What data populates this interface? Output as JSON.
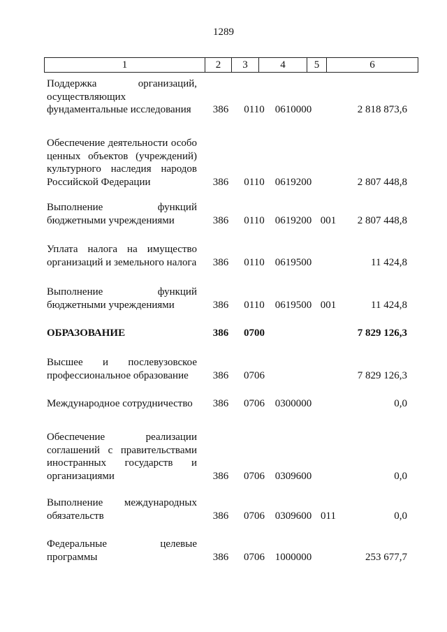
{
  "page_number": "1289",
  "header": [
    "1",
    "2",
    "3",
    "4",
    "5",
    "6"
  ],
  "rows": [
    {
      "name": "Поддержка организаций, осуществляющих фундаментальные исследования",
      "c2": "386",
      "c3": "0110",
      "c4": "0610000",
      "c5": "",
      "c6": "2 818 873,6",
      "bold": false
    },
    {
      "name": "Обеспечение деятельности особо ценных объектов (учреждений) культурного наследия народов Российской Федерации",
      "c2": "386",
      "c3": "0110",
      "c4": "0619200",
      "c5": "",
      "c6": "2 807 448,8",
      "bold": false
    },
    {
      "name": "Выполнение функций бюджетными учреждениями",
      "c2": "386",
      "c3": "0110",
      "c4": "0619200",
      "c5": "001",
      "c6": "2 807 448,8",
      "bold": false
    },
    {
      "name": "Уплата налога на имущество организаций и земельного налога",
      "c2": "386",
      "c3": "0110",
      "c4": "0619500",
      "c5": "",
      "c6": "11 424,8",
      "bold": false
    },
    {
      "name": "Выполнение функций бюджетными учреждениями",
      "c2": "386",
      "c3": "0110",
      "c4": "0619500",
      "c5": "001",
      "c6": "11 424,8",
      "bold": false
    },
    {
      "name": "ОБРАЗОВАНИЕ",
      "c2": "386",
      "c3": "0700",
      "c4": "",
      "c5": "",
      "c6": "7 829 126,3",
      "bold": true
    },
    {
      "name": "Высшее и послевузовское профессиональное образование",
      "c2": "386",
      "c3": "0706",
      "c4": "",
      "c5": "",
      "c6": "7 829 126,3",
      "bold": false
    },
    {
      "name": "Международное сотрудничество",
      "c2": "386",
      "c3": "0706",
      "c4": "0300000",
      "c5": "",
      "c6": "0,0",
      "bold": false
    },
    {
      "name": "Обеспечение реализации соглашений с правительствами иностранных государств и организациями",
      "c2": "386",
      "c3": "0706",
      "c4": "0309600",
      "c5": "",
      "c6": "0,0",
      "bold": false
    },
    {
      "name": "Выполнение международных обязательств",
      "c2": "386",
      "c3": "0706",
      "c4": "0309600",
      "c5": "011",
      "c6": "0,0",
      "bold": false
    },
    {
      "name": "Федеральные целевые программы",
      "c2": "386",
      "c3": "0706",
      "c4": "1000000",
      "c5": "",
      "c6": "253 677,7",
      "bold": false
    }
  ]
}
